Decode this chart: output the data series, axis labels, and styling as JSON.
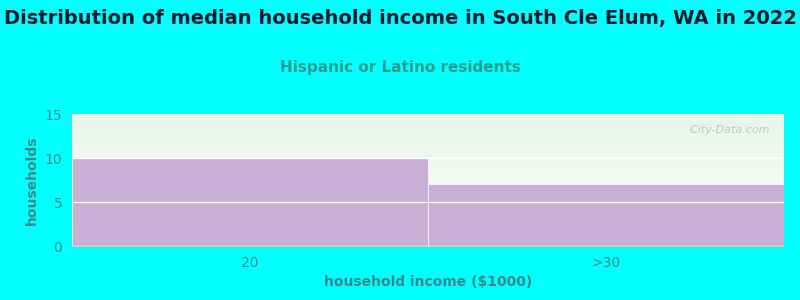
{
  "title": "Distribution of median household income in South Cle Elum, WA in 2022",
  "subtitle": "Hispanic or Latino residents",
  "xlabel": "household income ($1000)",
  "ylabel": "households",
  "categories": [
    "20",
    ">30"
  ],
  "values": [
    10,
    7
  ],
  "bar_color": "#c9aed6",
  "background_color": "#00ffff",
  "plot_bg_top": "#e8f5e9",
  "plot_bg_bottom": "#ffffff",
  "ylim": [
    0,
    15
  ],
  "yticks": [
    0,
    5,
    10,
    15
  ],
  "title_fontsize": 14,
  "subtitle_fontsize": 11,
  "subtitle_color": "#2a9d8f",
  "xlabel_fontsize": 10,
  "ylabel_fontsize": 10,
  "tick_color": "#3a8a8a",
  "watermark": "  City-Data.com",
  "watermark_color": "#b0c4c4"
}
